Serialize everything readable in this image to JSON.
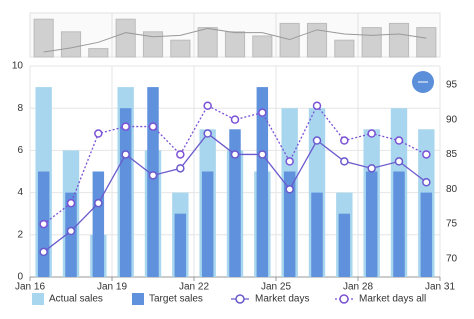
{
  "chart_data": {
    "type": "bar-line",
    "x": [
      16,
      17,
      18,
      19,
      20,
      21,
      22,
      23,
      24,
      25,
      26,
      27,
      28,
      29,
      30
    ],
    "xlim": [
      16,
      31
    ],
    "xticks": [
      {
        "value": 16,
        "label": "Jan 16"
      },
      {
        "value": 19,
        "label": "Jan 19"
      },
      {
        "value": 22,
        "label": "Jan 22"
      },
      {
        "value": 25,
        "label": "Jan 25"
      },
      {
        "value": 28,
        "label": "Jan 28"
      },
      {
        "value": 31,
        "label": "Jan 31"
      }
    ],
    "ylim": [
      0,
      10
    ],
    "yticks": [
      0,
      2,
      4,
      6,
      8,
      10
    ],
    "y2lim": [
      67.4,
      97.7
    ],
    "y2ticks": [
      70,
      75,
      80,
      85,
      90,
      95
    ],
    "grid": true,
    "series": [
      {
        "name": "Actual sales",
        "kind": "bar",
        "color": "#a8d6ee",
        "values": [
          9,
          6,
          2,
          9,
          6,
          4,
          7,
          6,
          5,
          8,
          8,
          4,
          7,
          8,
          7
        ]
      },
      {
        "name": "Target sales",
        "kind": "bar",
        "color": "#5f91dc",
        "values": [
          5,
          4,
          5,
          8,
          9,
          3,
          5,
          7,
          9,
          5,
          4,
          3,
          5,
          5,
          4
        ]
      },
      {
        "name": "Market days",
        "kind": "line",
        "axis": "y2",
        "color": "#6a5acd",
        "dashed": false,
        "values": [
          71,
          74,
          78,
          85,
          82,
          83,
          88,
          85,
          85,
          80,
          87,
          84,
          83,
          84,
          81
        ]
      },
      {
        "name": "Market days all",
        "kind": "line",
        "axis": "y2",
        "color": "#7b52d6",
        "dashed": true,
        "values": [
          75,
          78,
          88,
          89,
          89,
          85,
          92,
          90,
          91,
          84,
          92,
          87,
          88,
          87,
          85
        ]
      }
    ]
  }
}
